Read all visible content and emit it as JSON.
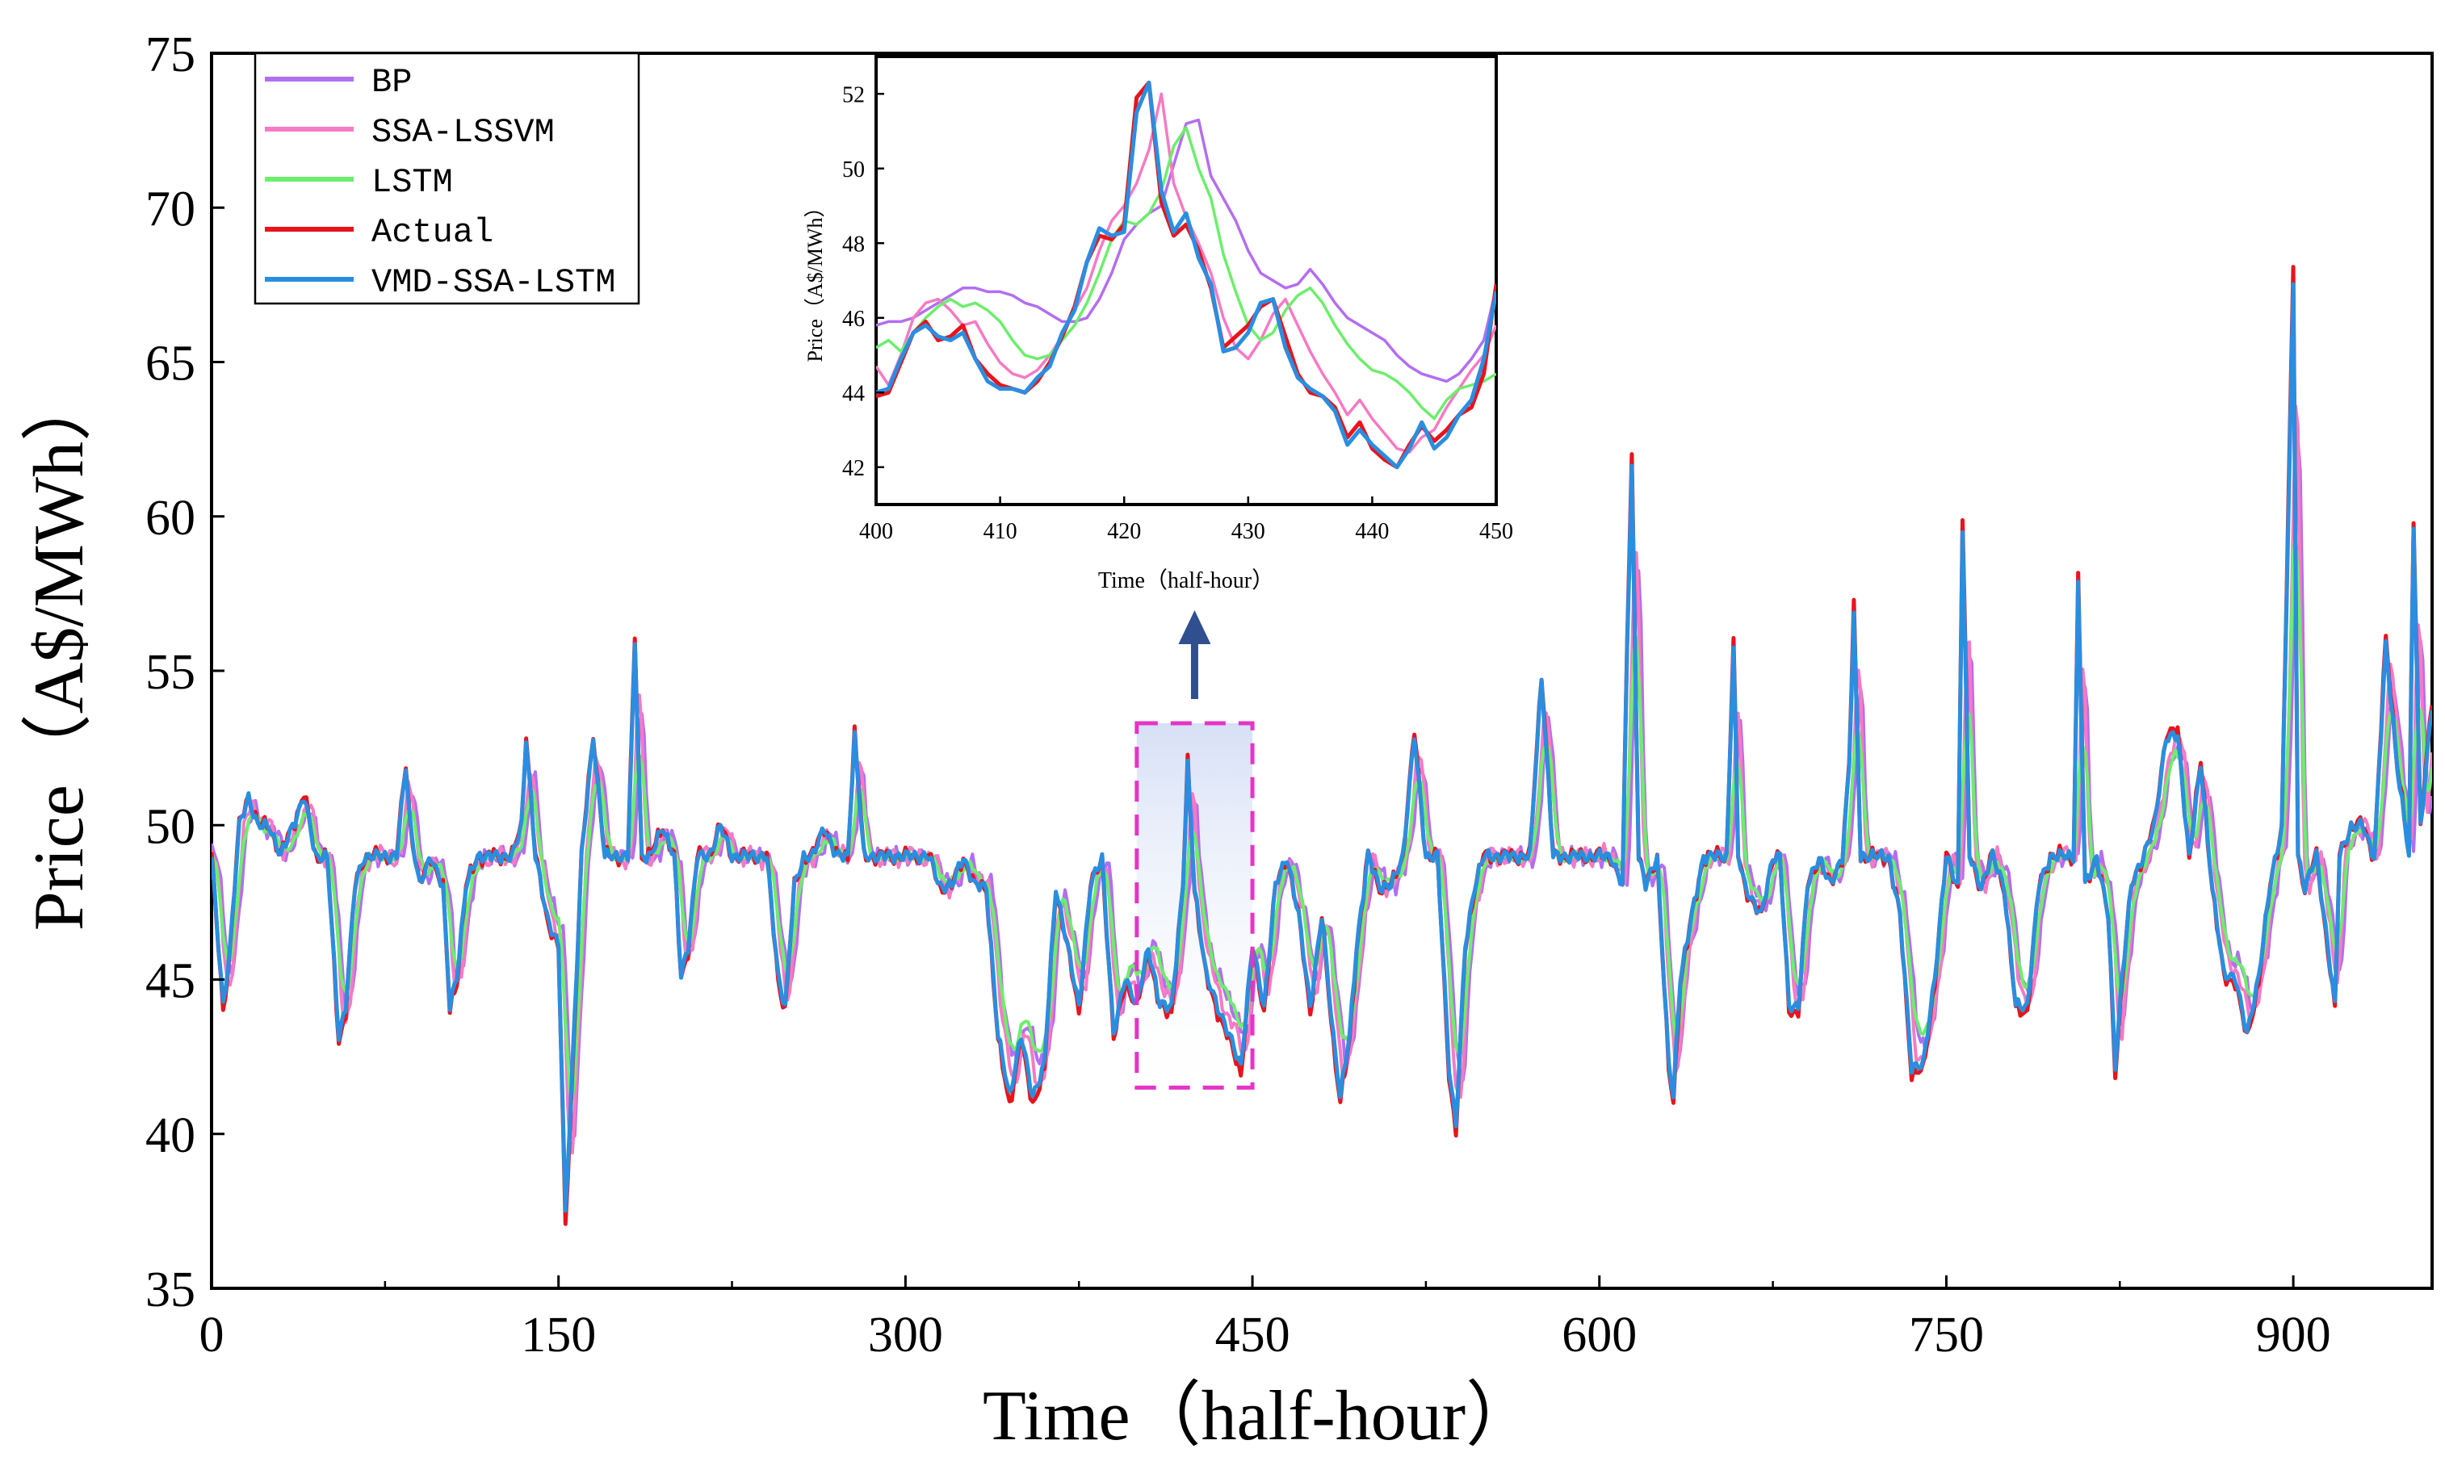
{
  "chart_data": [
    {
      "type": "line",
      "title": "",
      "xlabel": "Time（half-hour）",
      "ylabel": "Price（A$/MWh）",
      "xlim": [
        0,
        960
      ],
      "ylim": [
        35,
        75
      ],
      "xticks": [
        0,
        150,
        300,
        450,
        600,
        750,
        900
      ],
      "yticks": [
        35,
        40,
        45,
        50,
        55,
        60,
        65,
        70,
        75
      ],
      "legend_position": "top-left",
      "colors": {
        "BP": "#b36ef0",
        "SSA-LSSVM": "#f67ac4",
        "LSTM": "#6cee6c",
        "Actual": "#e8141c",
        "VMD-SSA-LSTM": "#2a8ee0",
        "highlight": "#e534c8",
        "arrow": "#2f4f8f"
      },
      "legend": [
        "BP",
        "SSA-LSSVM",
        "LSTM",
        "Actual",
        "VMD-SSA-LSTM"
      ],
      "highlight_region": {
        "x": [
          400,
          450
        ],
        "y": [
          41.5,
          53.3
        ]
      },
      "actual_anchors": {
        "x": [
          0,
          5,
          8,
          12,
          16,
          20,
          25,
          30,
          35,
          40,
          45,
          50,
          55,
          58,
          62,
          66,
          70,
          75,
          80,
          84,
          86,
          90,
          95,
          100,
          103,
          106,
          110,
          115,
          120,
          125,
          130,
          134,
          136,
          140,
          145,
          150,
          153,
          156,
          160,
          165,
          170,
          175,
          180,
          183,
          186,
          190,
          195,
          200,
          203,
          206,
          210,
          215,
          220,
          225,
          230,
          240,
          245,
          248,
          252,
          256,
          260,
          265,
          270,
          275,
          278,
          282,
          286,
          290,
          295,
          300,
          305,
          310,
          315,
          320,
          325,
          330,
          335,
          340,
          345,
          350,
          355,
          360,
          365,
          370,
          375,
          380,
          385,
          390,
          395,
          400,
          405,
          410,
          415,
          420,
          422,
          425,
          430,
          435,
          440,
          445,
          450,
          455,
          460,
          465,
          470,
          475,
          480,
          485,
          488,
          492,
          495,
          500,
          505,
          510,
          515,
          520,
          525,
          530,
          535,
          538,
          542,
          546,
          550,
          555,
          560,
          565,
          570,
          575,
          580,
          585,
          590,
          595,
          600,
          605,
          610,
          612,
          614,
          617,
          620,
          625,
          630,
          632,
          635,
          640,
          645,
          650,
          655,
          658,
          660,
          663,
          670,
          675,
          678,
          682,
          686,
          690,
          695,
          700,
          705,
          708,
          710,
          713,
          720,
          725,
          730,
          735,
          740,
          745,
          750,
          755,
          757,
          760,
          765,
          770,
          775,
          780,
          785,
          790,
          795,
          800,
          805,
          807,
          810,
          815,
          820,
          823,
          826,
          830,
          835,
          840,
          845,
          850,
          855,
          860,
          865,
          870,
          875,
          880,
          885,
          890,
          895,
          900,
          902,
          905,
          910,
          915,
          918,
          920,
          925,
          930,
          935,
          940,
          945,
          950,
          952,
          955,
          960
        ],
        "y": [
          49,
          44,
          46,
          50,
          51,
          50,
          50,
          49,
          50,
          51,
          49,
          49,
          43,
          44,
          48,
          49,
          49,
          49,
          49,
          52,
          50,
          48,
          49,
          48,
          44,
          45,
          48,
          49,
          49,
          49,
          49,
          50,
          53,
          49,
          47,
          46,
          37,
          42,
          49,
          53,
          49,
          49,
          49,
          56,
          49,
          49,
          50,
          49,
          45,
          46,
          49,
          49,
          50,
          49,
          49,
          49,
          45,
          44,
          48,
          49,
          49,
          50,
          49,
          49,
          53,
          49,
          49,
          49,
          49,
          49,
          49,
          49,
          48,
          48,
          49,
          48,
          48,
          43,
          41,
          43,
          41,
          42,
          48,
          46,
          44,
          48,
          49,
          43,
          45,
          44,
          46,
          44,
          44,
          48,
          52,
          48,
          45,
          44,
          43,
          42,
          46,
          44,
          48,
          49,
          47,
          44,
          47,
          43,
          41,
          43,
          46,
          49,
          48,
          48,
          49,
          53,
          49,
          49,
          42,
          40,
          46,
          48,
          49,
          49,
          49,
          49,
          49,
          55,
          49,
          49,
          49,
          49,
          49,
          49,
          48,
          56,
          62,
          49,
          48,
          49,
          42,
          41,
          45,
          47,
          49,
          49,
          49,
          56,
          49,
          48,
          47,
          49,
          49,
          44,
          44,
          48,
          49,
          48,
          49,
          52,
          57,
          49,
          49,
          49,
          47,
          42,
          42,
          45,
          49,
          48,
          60,
          49,
          48,
          49,
          48,
          44,
          44,
          48,
          49,
          49,
          49,
          58,
          48,
          49,
          47,
          42,
          45,
          48,
          49,
          50,
          53,
          53,
          49,
          52,
          48,
          45,
          45,
          43,
          45,
          48,
          50,
          68,
          49,
          48,
          49,
          46,
          44,
          49,
          50,
          50,
          49,
          56,
          52,
          49,
          60,
          50,
          54
        ]
      }
    },
    {
      "type": "line",
      "title": "",
      "xlabel": "Time（half-hour）",
      "ylabel": "Price（A$/MWh）",
      "xlim": [
        400,
        450
      ],
      "ylim": [
        41,
        53
      ],
      "xticks": [
        400,
        410,
        420,
        430,
        440,
        450
      ],
      "yticks": [
        42,
        44,
        46,
        48,
        50,
        52
      ],
      "x": [
        400,
        401,
        402,
        403,
        404,
        405,
        406,
        407,
        408,
        409,
        410,
        411,
        412,
        413,
        414,
        415,
        416,
        417,
        418,
        419,
        420,
        421,
        422,
        423,
        424,
        425,
        426,
        427,
        428,
        429,
        430,
        431,
        432,
        433,
        434,
        435,
        436,
        437,
        438,
        439,
        440,
        441,
        442,
        443,
        444,
        445,
        446,
        447,
        448,
        449,
        450
      ],
      "series": [
        {
          "name": "Actual",
          "values": [
            43.9,
            44.0,
            44.8,
            45.6,
            45.9,
            45.4,
            45.5,
            45.8,
            44.9,
            44.5,
            44.2,
            44.1,
            44.0,
            44.3,
            44.8,
            45.5,
            46.3,
            47.5,
            48.2,
            48.1,
            48.5,
            51.9,
            52.3,
            49.1,
            48.2,
            48.5,
            47.8,
            46.8,
            45.2,
            45.5,
            45.8,
            46.3,
            46.5,
            45.5,
            44.5,
            44.0,
            43.9,
            43.6,
            42.8,
            43.2,
            42.5,
            42.2,
            42.0,
            42.6,
            43.1,
            42.7,
            43.0,
            43.4,
            43.6,
            44.5,
            46.9
          ]
        },
        {
          "name": "VMD-SSA-LSTM",
          "values": [
            44.0,
            44.1,
            44.9,
            45.6,
            45.8,
            45.5,
            45.4,
            45.6,
            44.9,
            44.3,
            44.1,
            44.1,
            44.0,
            44.4,
            44.7,
            45.6,
            46.2,
            47.5,
            48.4,
            48.2,
            48.3,
            51.5,
            52.3,
            49.4,
            48.3,
            48.8,
            47.6,
            46.9,
            45.1,
            45.2,
            45.6,
            46.4,
            46.5,
            45.2,
            44.4,
            44.1,
            43.9,
            43.5,
            42.6,
            43.0,
            42.6,
            42.3,
            42.0,
            42.5,
            43.2,
            42.5,
            42.8,
            43.4,
            43.8,
            44.9,
            46.7
          ]
        },
        {
          "name": "LSTM",
          "values": [
            45.2,
            45.4,
            45.1,
            45.6,
            46.0,
            46.3,
            46.5,
            46.3,
            46.4,
            46.2,
            45.9,
            45.4,
            45.0,
            44.9,
            45.0,
            45.4,
            45.8,
            46.4,
            47.2,
            48.1,
            48.6,
            48.5,
            48.8,
            49.4,
            50.6,
            51.1,
            50.0,
            49.2,
            47.7,
            46.7,
            45.8,
            45.4,
            45.6,
            46.2,
            46.6,
            46.8,
            46.4,
            45.8,
            45.3,
            44.9,
            44.6,
            44.5,
            44.3,
            44.0,
            43.6,
            43.3,
            43.8,
            44.1,
            44.2,
            44.3,
            44.5
          ]
        },
        {
          "name": "SSA-LSSVM",
          "values": [
            44.7,
            44.2,
            45.0,
            46.0,
            46.4,
            46.5,
            46.2,
            45.8,
            45.9,
            45.3,
            44.8,
            44.5,
            44.4,
            44.6,
            45.0,
            45.5,
            46.2,
            46.8,
            47.8,
            48.6,
            49.0,
            49.6,
            50.5,
            52.0,
            49.6,
            48.7,
            48.0,
            47.2,
            46.0,
            45.2,
            44.9,
            45.4,
            46.1,
            46.5,
            45.8,
            45.1,
            44.5,
            44.0,
            43.4,
            43.8,
            43.3,
            42.9,
            42.5,
            42.4,
            42.8,
            43.0,
            43.6,
            44.1,
            44.6,
            45.0,
            45.8
          ]
        },
        {
          "name": "BP",
          "values": [
            45.8,
            45.9,
            45.9,
            46.0,
            46.2,
            46.4,
            46.6,
            46.8,
            46.8,
            46.7,
            46.7,
            46.6,
            46.4,
            46.3,
            46.1,
            45.9,
            45.9,
            46.0,
            46.5,
            47.2,
            48.1,
            48.5,
            48.8,
            49.0,
            50.1,
            51.2,
            51.3,
            49.8,
            49.2,
            48.6,
            47.8,
            47.2,
            47.0,
            46.8,
            46.9,
            47.3,
            46.9,
            46.4,
            46.0,
            45.8,
            45.6,
            45.4,
            45.0,
            44.7,
            44.5,
            44.4,
            44.3,
            44.5,
            44.9,
            45.4,
            46.8
          ]
        }
      ]
    }
  ]
}
